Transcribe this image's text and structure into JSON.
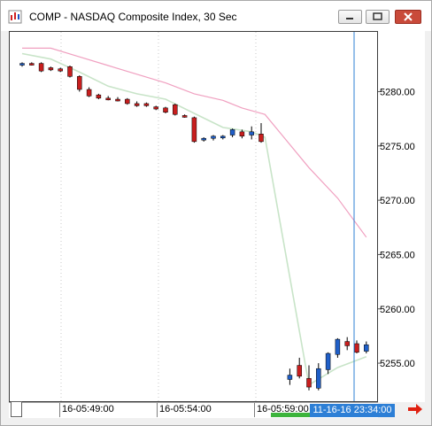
{
  "window": {
    "title": "COMP - NASDAQ Composite Index, 30 Sec",
    "minimize_icon": "minimize-icon",
    "maximize_icon": "maximize-icon",
    "close_icon": "close-icon"
  },
  "price_axis": {
    "labels": [
      "5280.00",
      "5275.00",
      "5270.00",
      "5265.00",
      "5260.00",
      "5255.00"
    ]
  },
  "time_axis": {
    "labels": [
      "16-05:49:00",
      "16-05:54:00",
      "16-05:59:00"
    ],
    "cursor_time": "11-16-16 23:34:00"
  },
  "colors": {
    "up": "#1f5fc8",
    "down": "#c81e1e",
    "fast_ma": "#c8e4c8",
    "slow_ma": "#f0a0c0",
    "cursor": "#2d7fd6",
    "nav_arrow": "#e02010"
  },
  "chart_data": {
    "type": "candlestick",
    "title": "COMP - NASDAQ Composite Index, 30 Sec",
    "ylim": [
      5251.5,
      5285.5
    ],
    "y_ticks": [
      5255,
      5260,
      5265,
      5270,
      5275,
      5280
    ],
    "candles": [
      {
        "o": 5282.5,
        "h": 5282.7,
        "l": 5282.3,
        "c": 5282.6
      },
      {
        "o": 5282.6,
        "h": 5282.7,
        "l": 5282.4,
        "c": 5282.5
      },
      {
        "o": 5282.6,
        "h": 5282.7,
        "l": 5281.8,
        "c": 5281.9
      },
      {
        "o": 5282.2,
        "h": 5282.3,
        "l": 5281.9,
        "c": 5282.0
      },
      {
        "o": 5282.1,
        "h": 5282.2,
        "l": 5281.8,
        "c": 5281.9
      },
      {
        "o": 5282.3,
        "h": 5282.4,
        "l": 5281.3,
        "c": 5281.4
      },
      {
        "o": 5281.4,
        "h": 5281.5,
        "l": 5280.0,
        "c": 5280.2
      },
      {
        "o": 5280.2,
        "h": 5280.4,
        "l": 5279.5,
        "c": 5279.6
      },
      {
        "o": 5279.7,
        "h": 5279.8,
        "l": 5279.3,
        "c": 5279.4
      },
      {
        "o": 5279.4,
        "h": 5279.6,
        "l": 5279.2,
        "c": 5279.3
      },
      {
        "o": 5279.3,
        "h": 5279.5,
        "l": 5279.1,
        "c": 5279.2
      },
      {
        "o": 5279.3,
        "h": 5279.4,
        "l": 5278.8,
        "c": 5278.9
      },
      {
        "o": 5278.9,
        "h": 5279.1,
        "l": 5278.6,
        "c": 5278.7
      },
      {
        "o": 5278.9,
        "h": 5279.0,
        "l": 5278.6,
        "c": 5278.7
      },
      {
        "o": 5278.6,
        "h": 5278.7,
        "l": 5278.3,
        "c": 5278.4
      },
      {
        "o": 5278.5,
        "h": 5278.6,
        "l": 5278.0,
        "c": 5278.1
      },
      {
        "o": 5278.8,
        "h": 5278.9,
        "l": 5277.8,
        "c": 5277.9
      },
      {
        "o": 5277.8,
        "h": 5277.9,
        "l": 5277.6,
        "c": 5277.7
      },
      {
        "o": 5277.6,
        "h": 5277.7,
        "l": 5275.3,
        "c": 5275.4
      },
      {
        "o": 5275.6,
        "h": 5275.8,
        "l": 5275.4,
        "c": 5275.7
      },
      {
        "o": 5275.7,
        "h": 5276.0,
        "l": 5275.5,
        "c": 5275.9
      },
      {
        "o": 5275.8,
        "h": 5276.0,
        "l": 5275.6,
        "c": 5275.9
      },
      {
        "o": 5276.0,
        "h": 5276.6,
        "l": 5275.8,
        "c": 5276.5
      },
      {
        "o": 5276.3,
        "h": 5276.5,
        "l": 5275.7,
        "c": 5275.9
      },
      {
        "o": 5276.0,
        "h": 5276.8,
        "l": 5275.6,
        "c": 5276.3
      },
      {
        "o": 5276.1,
        "h": 5277.1,
        "l": 5275.3,
        "c": 5275.4
      },
      null,
      null,
      {
        "o": 5253.5,
        "h": 5254.5,
        "l": 5253.0,
        "c": 5253.9
      },
      {
        "o": 5254.8,
        "h": 5255.5,
        "l": 5253.6,
        "c": 5253.8
      },
      {
        "o": 5253.6,
        "h": 5254.8,
        "l": 5252.5,
        "c": 5252.8
      },
      {
        "o": 5252.7,
        "h": 5255.0,
        "l": 5252.5,
        "c": 5254.5
      },
      {
        "o": 5254.4,
        "h": 5256.0,
        "l": 5254.0,
        "c": 5255.9
      },
      {
        "o": 5255.8,
        "h": 5257.3,
        "l": 5255.5,
        "c": 5257.2
      },
      {
        "o": 5257.0,
        "h": 5257.4,
        "l": 5256.2,
        "c": 5256.6
      },
      {
        "o": 5256.8,
        "h": 5257.1,
        "l": 5255.9,
        "c": 5256.0
      },
      {
        "o": 5256.1,
        "h": 5257.0,
        "l": 5255.9,
        "c": 5256.7
      }
    ],
    "fast_ma": [
      {
        "i": 0,
        "y": 5283.5
      },
      {
        "i": 3,
        "y": 5283.0
      },
      {
        "i": 6,
        "y": 5281.8
      },
      {
        "i": 9,
        "y": 5280.5
      },
      {
        "i": 12,
        "y": 5279.8
      },
      {
        "i": 15,
        "y": 5279.3
      },
      {
        "i": 18,
        "y": 5278.0
      },
      {
        "i": 21,
        "y": 5276.7
      },
      {
        "i": 24,
        "y": 5276.3
      },
      {
        "i": 25.4,
        "y": 5275.8
      },
      {
        "i": 30,
        "y": 5253.0
      },
      {
        "i": 33,
        "y": 5254.6
      },
      {
        "i": 36,
        "y": 5255.6
      }
    ],
    "slow_ma": [
      {
        "i": 0,
        "y": 5284.0
      },
      {
        "i": 3,
        "y": 5284.0
      },
      {
        "i": 6,
        "y": 5283.2
      },
      {
        "i": 9,
        "y": 5282.4
      },
      {
        "i": 12,
        "y": 5281.6
      },
      {
        "i": 15,
        "y": 5280.8
      },
      {
        "i": 18,
        "y": 5279.8
      },
      {
        "i": 21,
        "y": 5279.2
      },
      {
        "i": 23,
        "y": 5278.5
      },
      {
        "i": 25.4,
        "y": 5277.9
      },
      {
        "i": 27,
        "y": 5276.2
      },
      {
        "i": 30,
        "y": 5273.0
      },
      {
        "i": 33,
        "y": 5270.2
      },
      {
        "i": 36,
        "y": 5266.6
      }
    ]
  }
}
